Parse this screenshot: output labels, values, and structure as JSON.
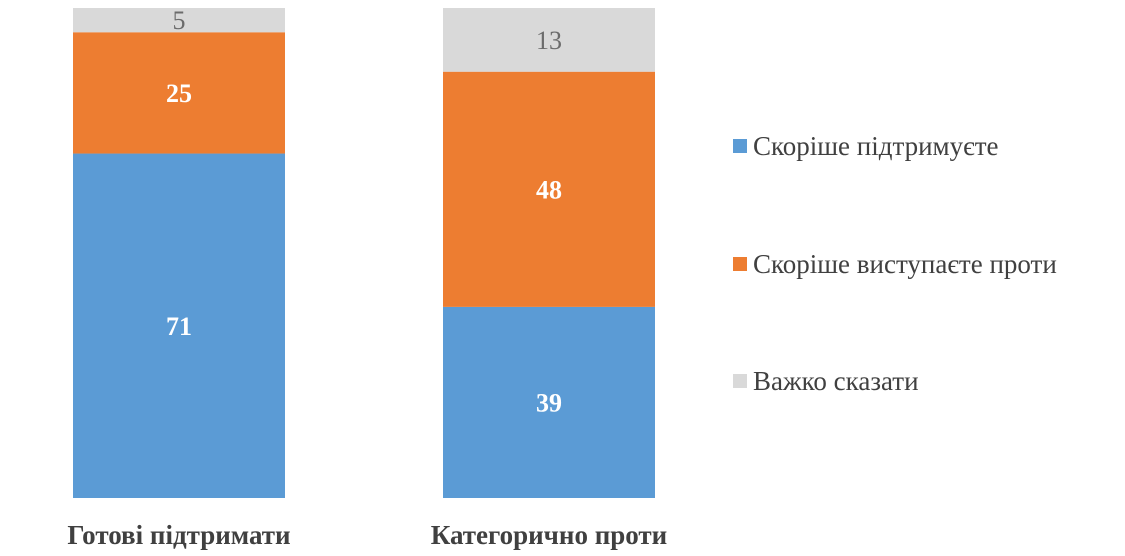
{
  "chart_data": {
    "type": "bar",
    "stacked": true,
    "percent_stacked": true,
    "categories": [
      "Готові підтримати",
      "Категорично проти"
    ],
    "series": [
      {
        "name": "Скоріше підтримуєте",
        "values": [
          71,
          39
        ],
        "color": "#5b9bd5",
        "label_style": "bold-white"
      },
      {
        "name": "Скоріше виступаєте проти",
        "values": [
          25,
          48
        ],
        "color": "#ed7d31",
        "label_style": "bold-white"
      },
      {
        "name": "Важко сказати",
        "values": [
          5,
          13
        ],
        "color": "#d9d9d9",
        "label_style": "gray"
      }
    ],
    "title": "",
    "xlabel": "",
    "ylabel": "",
    "ylim": [
      0,
      100
    ],
    "grid": false,
    "legend_position": "right"
  }
}
